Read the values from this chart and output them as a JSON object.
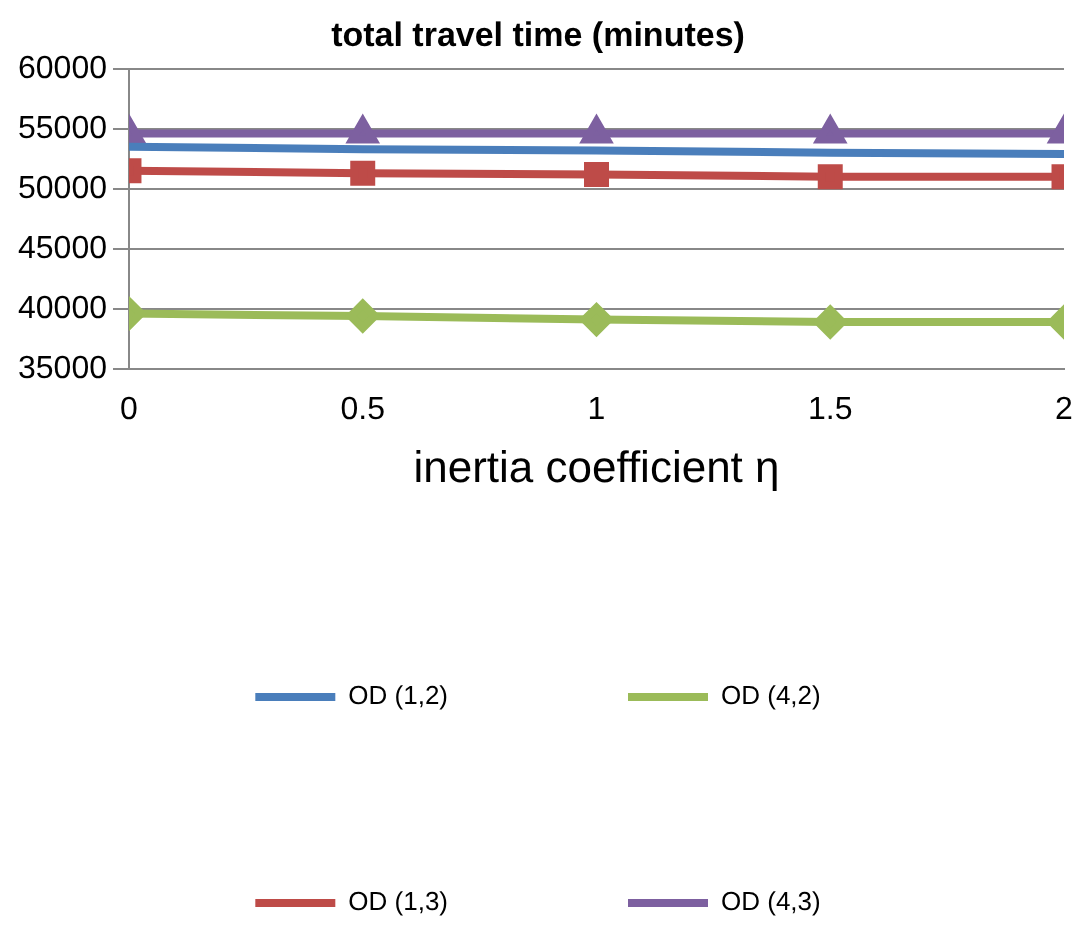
{
  "chart_data": {
    "type": "line",
    "title": "total travel time (minutes)",
    "xlabel": "inertia coefficient η",
    "x": [
      0,
      0.5,
      1,
      1.5,
      2
    ],
    "series": [
      {
        "name": "OD (1,2)",
        "color": "#4a7ebb",
        "marker": "none",
        "values": [
          53500,
          53300,
          53200,
          53000,
          52900
        ]
      },
      {
        "name": "OD (4,2)",
        "color": "#9bbb59",
        "marker": "diamond",
        "values": [
          39600,
          39400,
          39100,
          38900,
          38900
        ]
      },
      {
        "name": "OD (1,3)",
        "color": "#be4b48",
        "marker": "square",
        "values": [
          51500,
          51300,
          51200,
          51000,
          51000
        ]
      },
      {
        "name": "OD (4,3)",
        "color": "#7d60a0",
        "marker": "triangle",
        "values": [
          54600,
          54600,
          54600,
          54600,
          54600
        ]
      }
    ],
    "xlim": [
      0,
      2
    ],
    "xticks": [
      0,
      0.5,
      1,
      1.5,
      2
    ],
    "ylim": [
      35000,
      60000
    ],
    "yticks": [
      35000,
      40000,
      45000,
      50000,
      55000,
      60000
    ],
    "grid": "y",
    "legend": "bottom"
  }
}
